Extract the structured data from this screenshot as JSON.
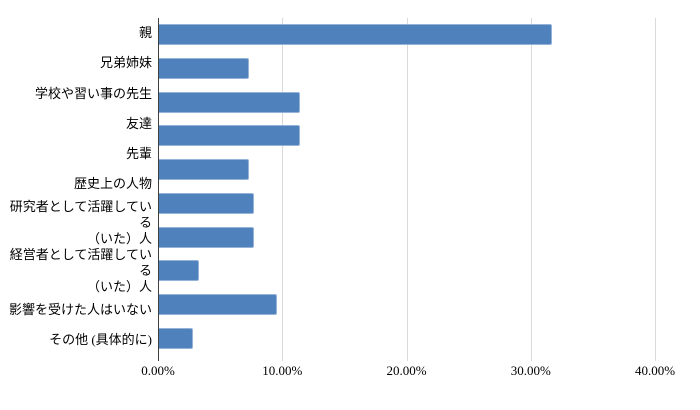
{
  "chart_data": {
    "type": "bar",
    "orientation": "horizontal",
    "title": "",
    "xlabel": "",
    "ylabel": "",
    "categories": [
      "親",
      "兄弟姉妹",
      "学校や習い事の先生",
      "友達",
      "先輩",
      "歴史上の人物",
      "研究者として活躍している\n（いた）人",
      "経営者として活躍している\n（いた）人",
      "影響を受けた人はいない",
      "その他 (具体的に)"
    ],
    "values": [
      31.7,
      7.3,
      11.4,
      11.4,
      7.3,
      7.7,
      7.7,
      3.3,
      9.6,
      2.8
    ],
    "value_unit": "%",
    "xlim": [
      0,
      42.5
    ],
    "x_ticks": [
      {
        "value": 0,
        "label": "0.00%"
      },
      {
        "value": 10,
        "label": "10.00%"
      },
      {
        "value": 20,
        "label": "20.00%"
      },
      {
        "value": 30,
        "label": "30.00%"
      },
      {
        "value": 40,
        "label": "40.00%"
      }
    ],
    "grid": true,
    "legend": "none",
    "colors": {
      "bar_fill": "#4F81BD",
      "bar_border": "#95B3D7",
      "gridline": "#D9D9D9",
      "axis_line": "#3F3F3F",
      "text": "#000000",
      "background": "#FFFFFF"
    }
  }
}
